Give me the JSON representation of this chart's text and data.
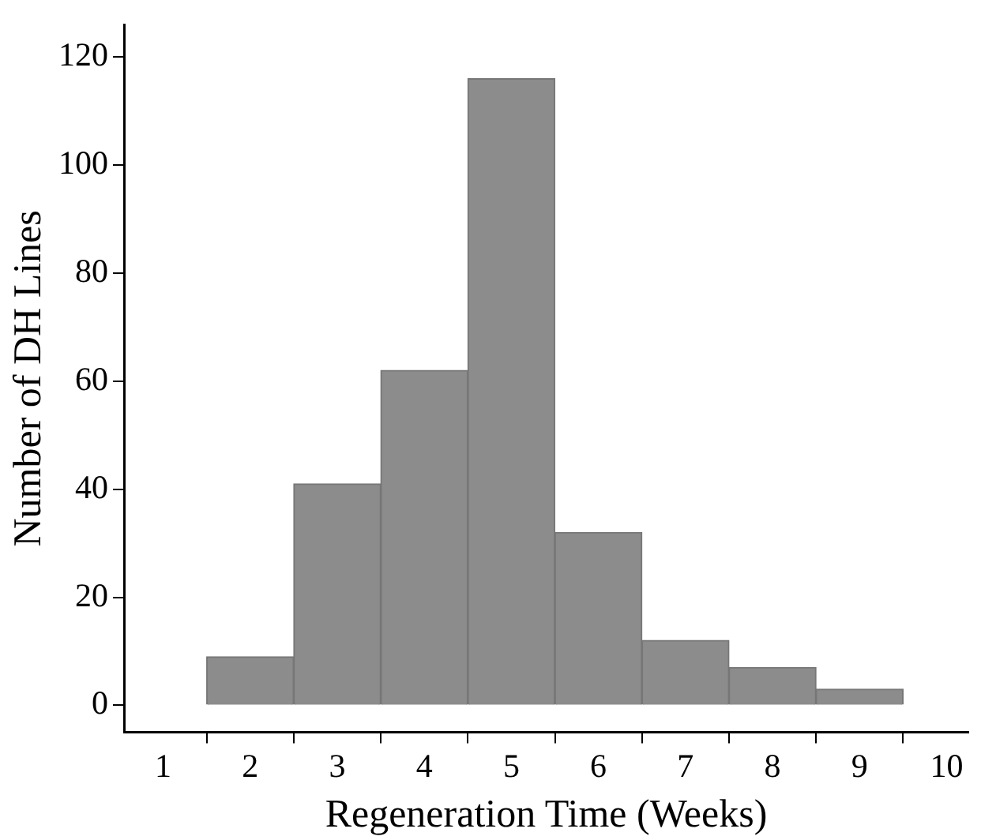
{
  "chart_data": {
    "type": "histogram",
    "xlabel": "Regeneration Time (Weeks)",
    "ylabel": "Number of DH Lines",
    "bins": [
      1.5,
      2.5,
      3.5,
      4.5,
      5.5,
      6.5,
      7.5,
      8.5,
      9.5
    ],
    "values": [
      9,
      41,
      62,
      116,
      32,
      12,
      7,
      3
    ],
    "color": "#8c8c8c",
    "xlim": [
      0.55,
      10.25
    ],
    "xticks": [
      1,
      2,
      3,
      4,
      5,
      6,
      7,
      8,
      9,
      10
    ],
    "ylim": [
      -5,
      126
    ],
    "yticks": [
      0,
      20,
      40,
      60,
      80,
      100,
      120
    ],
    "grid": false,
    "legend": false
  }
}
